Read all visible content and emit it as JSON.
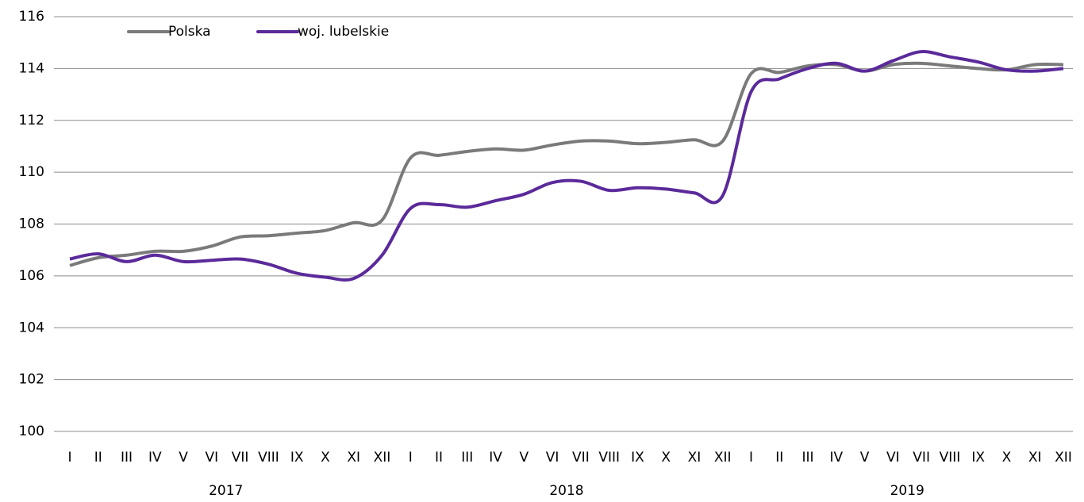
{
  "chart_data": {
    "type": "line",
    "categories": [
      "I",
      "II",
      "III",
      "IV",
      "V",
      "VI",
      "VII",
      "VIII",
      "IX",
      "X",
      "XI",
      "XII",
      "I",
      "II",
      "III",
      "IV",
      "V",
      "VI",
      "VII",
      "VIII",
      "IX",
      "X",
      "XI",
      "XII",
      "I",
      "II",
      "III",
      "IV",
      "V",
      "VI",
      "VII",
      "VIII",
      "IX",
      "X",
      "XI",
      "XII"
    ],
    "years": [
      "2017",
      "2018",
      "2019"
    ],
    "series": [
      {
        "name": "Polska",
        "color": "#7a7a7a",
        "values": [
          106.4,
          106.7,
          106.8,
          106.95,
          106.95,
          107.15,
          107.5,
          107.55,
          107.65,
          107.75,
          108.05,
          108.15,
          110.55,
          110.65,
          110.8,
          110.9,
          110.85,
          111.05,
          111.2,
          111.2,
          111.1,
          111.15,
          111.25,
          111.2,
          113.8,
          113.85,
          114.1,
          114.15,
          113.9,
          114.15,
          114.2,
          114.1,
          114.0,
          113.95,
          114.15,
          114.15
        ]
      },
      {
        "name": "woj. lubelskie",
        "color": "#5b2a9a",
        "values": [
          106.65,
          106.85,
          106.55,
          106.8,
          106.55,
          106.6,
          106.65,
          106.45,
          106.1,
          105.95,
          105.9,
          106.8,
          108.6,
          108.75,
          108.65,
          108.9,
          109.15,
          109.6,
          109.65,
          109.3,
          109.4,
          109.35,
          109.2,
          109.1,
          113.1,
          113.6,
          114.0,
          114.2,
          113.9,
          114.3,
          114.65,
          114.45,
          114.25,
          113.95,
          113.9,
          114.0
        ]
      }
    ],
    "ylim": [
      100,
      116
    ],
    "yticks": [
      100,
      102,
      104,
      106,
      108,
      110,
      112,
      114,
      116
    ],
    "grid": true,
    "legend": "top-left"
  }
}
